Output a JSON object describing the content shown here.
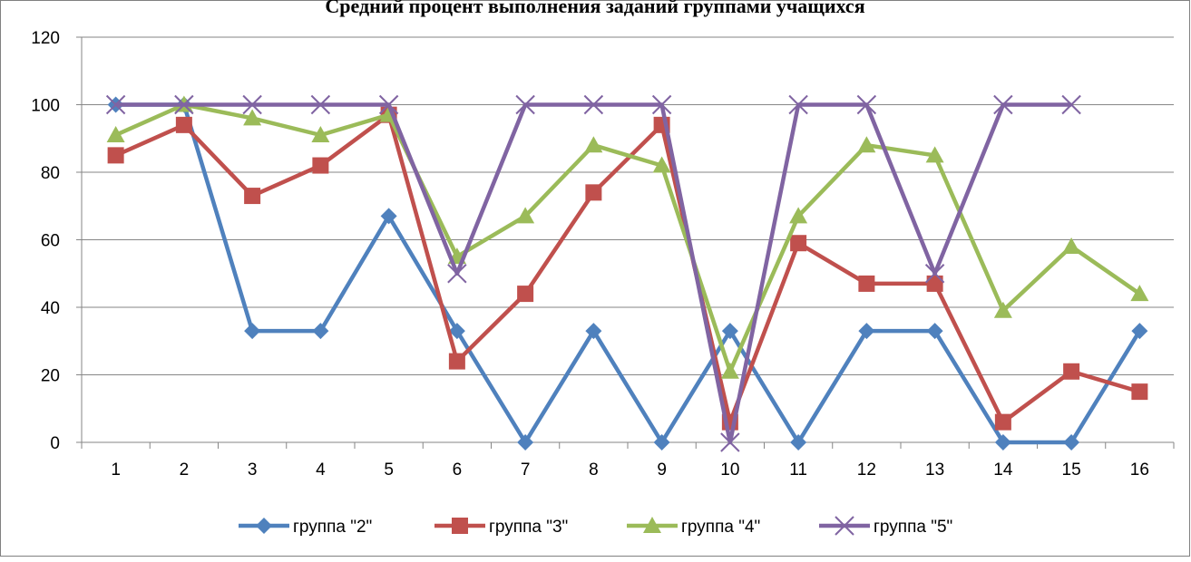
{
  "chart_data": {
    "type": "line",
    "title": "Средний процент выполнения заданий группами учащихся",
    "xlabel": "",
    "ylabel": "",
    "categories": [
      "1",
      "2",
      "3",
      "4",
      "5",
      "6",
      "7",
      "8",
      "9",
      "10",
      "11",
      "12",
      "13",
      "14",
      "15",
      "16"
    ],
    "ylim": [
      0,
      120
    ],
    "yticks": [
      0,
      20,
      40,
      60,
      80,
      100,
      120
    ],
    "grid": true,
    "legend_position": "bottom",
    "series": [
      {
        "name": "группа \"2\"",
        "color": "#4F81BD",
        "marker": "diamond",
        "values": [
          100,
          100,
          33,
          33,
          67,
          33,
          0,
          33,
          0,
          33,
          0,
          33,
          33,
          0,
          0,
          33
        ]
      },
      {
        "name": "группа \"3\"",
        "color": "#C0504D",
        "marker": "square",
        "values": [
          85,
          94,
          73,
          82,
          97,
          24,
          44,
          74,
          94,
          6,
          59,
          47,
          47,
          6,
          21,
          15
        ]
      },
      {
        "name": "группа \"4\"",
        "color": "#9BBB59",
        "marker": "triangle",
        "values": [
          91,
          100,
          96,
          91,
          97,
          55,
          67,
          88,
          82,
          21,
          67,
          88,
          85,
          39,
          58,
          44
        ]
      },
      {
        "name": "группа \"5\"",
        "color": "#8064A2",
        "marker": "x",
        "values": [
          100,
          100,
          100,
          100,
          100,
          50,
          100,
          100,
          100,
          0,
          100,
          100,
          50,
          100,
          100,
          null
        ]
      }
    ]
  }
}
